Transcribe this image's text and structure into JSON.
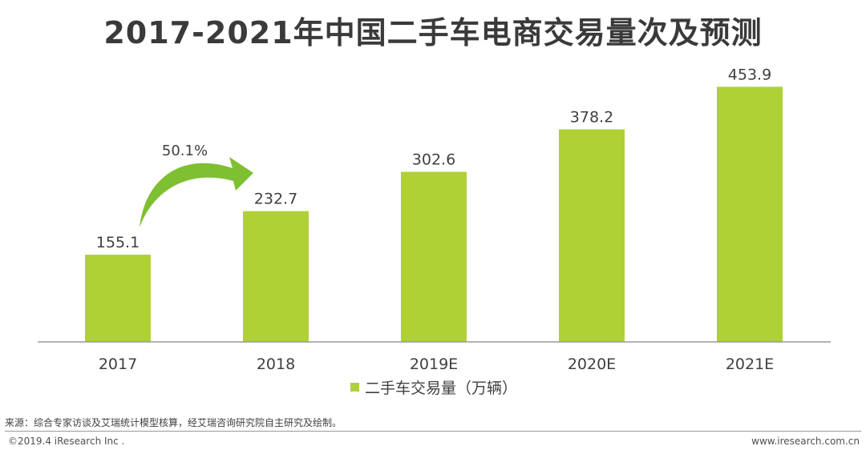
{
  "chart_data": {
    "type": "bar",
    "title": "2017-2021年中国二手车电商交易量次及预测",
    "categories": [
      "2017",
      "2018",
      "2019E",
      "2020E",
      "2021E"
    ],
    "values": [
      155.1,
      232.7,
      302.6,
      378.2,
      453.9
    ],
    "value_labels": [
      "155.1",
      "232.7",
      "302.6",
      "378.2",
      "453.9"
    ],
    "series_name": "二手车交易量（万辆）",
    "growth_annotation": {
      "label": "50.1%",
      "from": "2017",
      "to": "2018"
    },
    "xlabel": "",
    "ylabel": "",
    "ylim": [
      0,
      500
    ],
    "legend_position": "bottom-center",
    "bar_color": "#b0d136",
    "arrow_color": "#7fbf32"
  },
  "footer": {
    "source": "来源：综合专家访谈及艾瑞统计模型核算，经艾瑞咨询研究院自主研究及绘制。",
    "copyright": "©2019.4 iResearch Inc .",
    "website": "www.iresearch.com.cn"
  }
}
